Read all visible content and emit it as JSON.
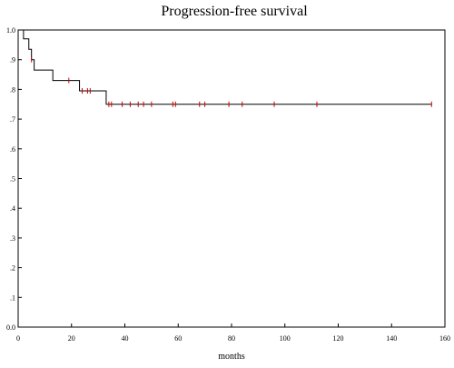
{
  "chart_data": {
    "type": "line",
    "title": "Progression-free survival",
    "xlabel": "months",
    "ylabel": "",
    "xlim": [
      0,
      160
    ],
    "ylim": [
      0.0,
      1.0
    ],
    "x_ticks": [
      0,
      20,
      40,
      60,
      80,
      100,
      120,
      140,
      160
    ],
    "y_ticks": [
      0.0,
      0.1,
      0.2,
      0.3,
      0.4,
      0.5,
      0.6,
      0.7,
      0.8,
      0.9,
      1.0
    ],
    "y_tick_labels": [
      "0.0",
      ".1",
      ".2",
      ".3",
      ".4",
      ".5",
      ".6",
      ".7",
      ".8",
      ".9",
      "1.0"
    ],
    "grid": false,
    "series": [
      {
        "style": "step",
        "color": "#000000",
        "x": [
          0,
          2,
          4,
          5,
          6,
          13,
          23,
          33,
          155
        ],
        "y": [
          1.0,
          0.97,
          0.935,
          0.9,
          0.865,
          0.83,
          0.795,
          0.75,
          0.75
        ]
      }
    ],
    "censored": {
      "color": "#cc0000",
      "x": [
        5,
        19,
        24,
        26,
        27,
        34,
        35,
        39,
        42,
        45,
        47,
        50,
        58,
        59,
        68,
        70,
        79,
        84,
        96,
        112,
        155
      ],
      "y": [
        0.9,
        0.83,
        0.795,
        0.795,
        0.795,
        0.75,
        0.75,
        0.75,
        0.75,
        0.75,
        0.75,
        0.75,
        0.75,
        0.75,
        0.75,
        0.75,
        0.75,
        0.75,
        0.75,
        0.75,
        0.75
      ]
    }
  }
}
